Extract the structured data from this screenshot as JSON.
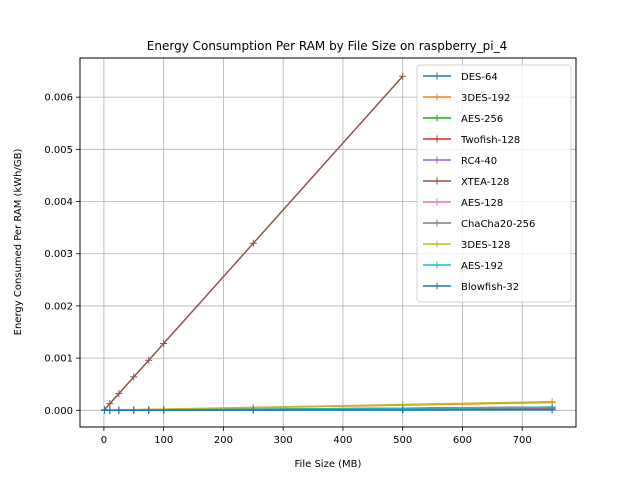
{
  "chart_data": {
    "type": "line",
    "title": "Energy Consumption Per RAM by File Size on raspberry_pi_4",
    "xlabel": "File Size (MB)",
    "ylabel": "Energy Consumed Per RAM (kWh/GB)",
    "xlim": [
      -40,
      790
    ],
    "ylim": [
      -0.00032,
      0.00675
    ],
    "xticks": [
      0,
      100,
      200,
      300,
      400,
      500,
      600,
      700
    ],
    "yticks": [
      0,
      0.001,
      0.002,
      0.003,
      0.004,
      0.005,
      0.006
    ],
    "ytick_labels": [
      "0.000",
      "0.001",
      "0.002",
      "0.003",
      "0.004",
      "0.005",
      "0.006"
    ],
    "grid": true,
    "legend_position": "top-right",
    "marker": "+",
    "series": [
      {
        "name": "DES-64",
        "color": "#1f77b4",
        "x": [
          1,
          10,
          25,
          50,
          75,
          100,
          250,
          500,
          750
        ],
        "y": [
          0.0,
          2e-07,
          5e-07,
          1e-06,
          1.5e-06,
          2e-06,
          6e-06,
          1.2e-05,
          2e-05
        ]
      },
      {
        "name": "3DES-192",
        "color": "#ff7f0e",
        "x": [
          1,
          10,
          25,
          50,
          75,
          100,
          250,
          500,
          750
        ],
        "y": [
          2e-07,
          2e-06,
          5e-06,
          1e-05,
          1.5e-05,
          2e-05,
          5e-05,
          0.0001,
          0.00015
        ]
      },
      {
        "name": "AES-256",
        "color": "#2ca02c",
        "x": [
          1,
          10,
          25,
          50,
          75,
          100,
          250,
          500,
          750
        ],
        "y": [
          0.0,
          8e-07,
          2e-06,
          4e-06,
          6e-06,
          8e-06,
          2e-05,
          4e-05,
          6e-05
        ]
      },
      {
        "name": "Twofish-128",
        "color": "#d62728",
        "x": [
          1,
          10,
          25,
          50,
          75,
          100,
          250,
          500,
          750
        ],
        "y": [
          0.0,
          8e-07,
          2e-06,
          4e-06,
          6e-06,
          8e-06,
          2e-05,
          4e-05,
          6e-05
        ]
      },
      {
        "name": "RC4-40",
        "color": "#9467bd",
        "x": [
          1,
          10,
          25,
          50,
          75,
          100,
          250,
          500,
          750
        ],
        "y": [
          0.0,
          5e-07,
          1.2e-06,
          2.5e-06,
          3.8e-06,
          5e-06,
          1.25e-05,
          2.5e-05,
          3.75e-05
        ]
      },
      {
        "name": "XTEA-128",
        "color": "#8c564b",
        "x": [
          1,
          10,
          25,
          50,
          75,
          100,
          250,
          500
        ],
        "y": [
          1.28e-05,
          0.000128,
          0.00032,
          0.00064,
          0.00096,
          0.00128,
          0.0032,
          0.0064
        ]
      },
      {
        "name": "AES-128",
        "color": "#e377c2",
        "x": [
          1,
          10,
          25,
          50,
          75,
          100,
          250,
          500,
          750
        ],
        "y": [
          0.0,
          7e-07,
          1.7e-06,
          3.5e-06,
          5.2e-06,
          7e-06,
          1.75e-05,
          3.5e-05,
          5.25e-05
        ]
      },
      {
        "name": "ChaCha20-256",
        "color": "#7f7f7f",
        "x": [
          1,
          10,
          25,
          50,
          75,
          100,
          250,
          500,
          750
        ],
        "y": [
          0.0,
          6e-07,
          1.5e-06,
          3e-06,
          4.5e-06,
          6e-06,
          1.5e-05,
          3e-05,
          4.5e-05
        ]
      },
      {
        "name": "3DES-128",
        "color": "#bcbd22",
        "x": [
          1,
          10,
          25,
          50,
          75,
          100,
          250,
          500,
          750
        ],
        "y": [
          2e-07,
          2.2e-06,
          5.5e-06,
          1.1e-05,
          1.65e-05,
          2.2e-05,
          5.5e-05,
          0.00011,
          0.000165
        ]
      },
      {
        "name": "AES-192",
        "color": "#17becf",
        "x": [
          1,
          10,
          25,
          50,
          75,
          100,
          250,
          500,
          750
        ],
        "y": [
          0.0,
          8e-07,
          2e-06,
          4e-06,
          6e-06,
          8e-06,
          2e-05,
          4e-05,
          6e-05
        ]
      },
      {
        "name": "Blowfish-32",
        "color": "#1f77b4",
        "x": [
          1,
          10,
          25,
          50,
          75,
          100,
          250,
          500,
          750
        ],
        "y": [
          0.0,
          1e-07,
          3e-07,
          6e-07,
          9e-07,
          1.2e-06,
          3e-06,
          6e-06,
          9e-06
        ]
      }
    ]
  }
}
